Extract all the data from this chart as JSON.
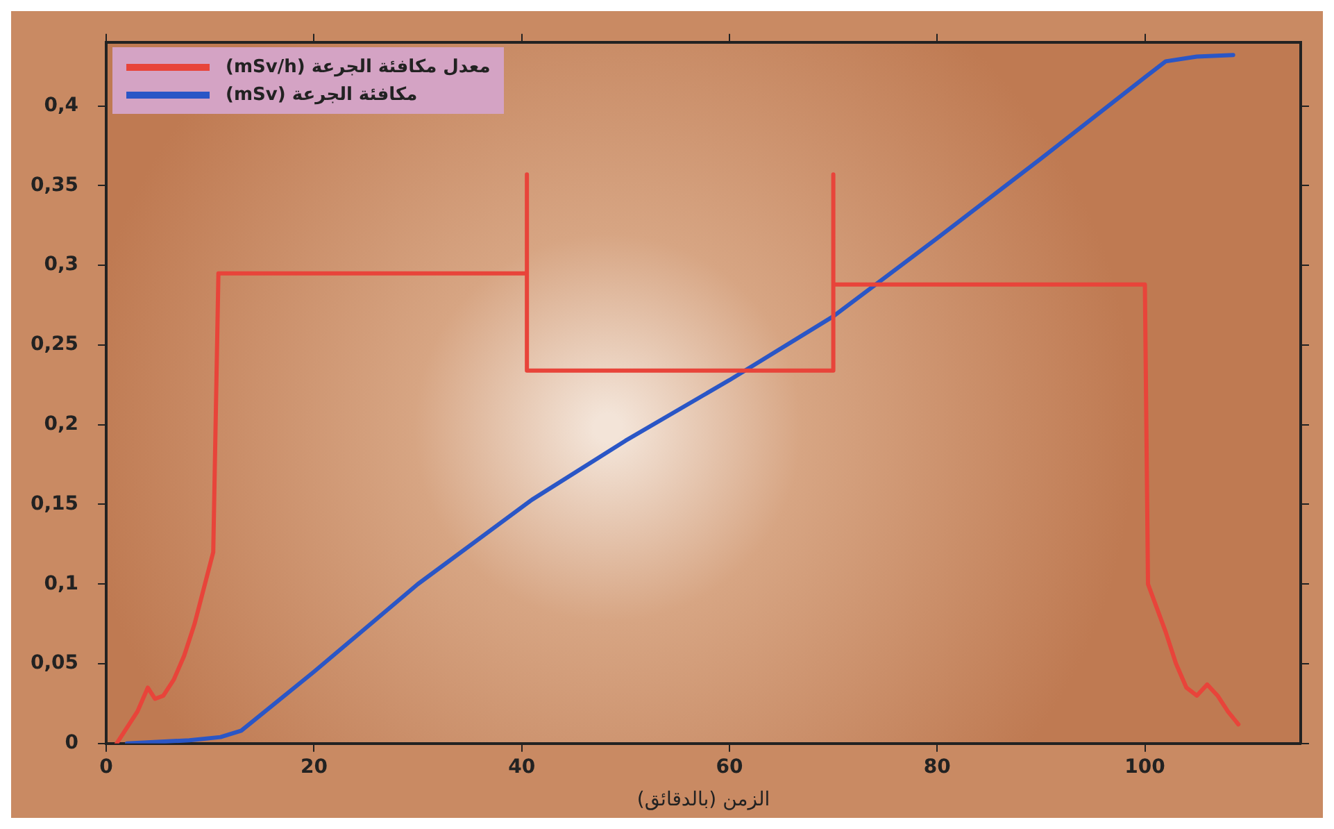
{
  "chart_data": {
    "type": "line",
    "xlabel": "الزمن (بالدقائق)",
    "xlim": [
      0,
      115
    ],
    "xticks": [
      0,
      20,
      40,
      60,
      80,
      100
    ],
    "ylim": [
      0,
      0.44
    ],
    "yticks": [
      0,
      {
        "value": 0.05,
        "label": "0,05"
      },
      {
        "value": 0.1,
        "label": "0,1"
      },
      {
        "value": 0.15,
        "label": "0,15"
      },
      {
        "value": 0.2,
        "label": "0,2"
      },
      {
        "value": 0.25,
        "label": "0,25"
      },
      {
        "value": 0.3,
        "label": "0,3"
      },
      {
        "value": 0.35,
        "label": "0,35"
      },
      {
        "value": 0.4,
        "label": "0,4"
      }
    ],
    "grid": false,
    "legend": "top left",
    "marker": "none",
    "line_style": "solid",
    "series": [
      {
        "name": "معدل مكافئة الجرعة (mSv/h)",
        "color": "#e8443a",
        "x": [
          1,
          2,
          3,
          4,
          4.7,
          5.5,
          6.5,
          7.5,
          8.5,
          9.5,
          10.3,
          10.8,
          40.5,
          40.5,
          40.5,
          70,
          70,
          70,
          100,
          100.3,
          102,
          103,
          104,
          105,
          106,
          107,
          108,
          109
        ],
        "values": [
          0,
          0.01,
          0.02,
          0.035,
          0.028,
          0.03,
          0.04,
          0.055,
          0.075,
          0.1,
          0.12,
          0.295,
          0.295,
          0.357,
          0.234,
          0.234,
          0.357,
          0.288,
          0.288,
          0.1,
          0.07,
          0.05,
          0.035,
          0.03,
          0.037,
          0.03,
          0.02,
          0.012
        ]
      },
      {
        "name": "مكافئة الجرعة (mSv)",
        "color": "#2a56c6",
        "x": [
          2,
          8,
          11,
          13,
          20,
          30,
          41,
          50,
          60,
          70,
          80,
          90,
          100,
          102,
          105,
          108.5
        ],
        "values": [
          0,
          0.002,
          0.004,
          0.008,
          0.045,
          0.1,
          0.153,
          0.19,
          0.228,
          0.268,
          0.317,
          0.367,
          0.418,
          0.428,
          0.431,
          0.432
        ]
      }
    ]
  }
}
